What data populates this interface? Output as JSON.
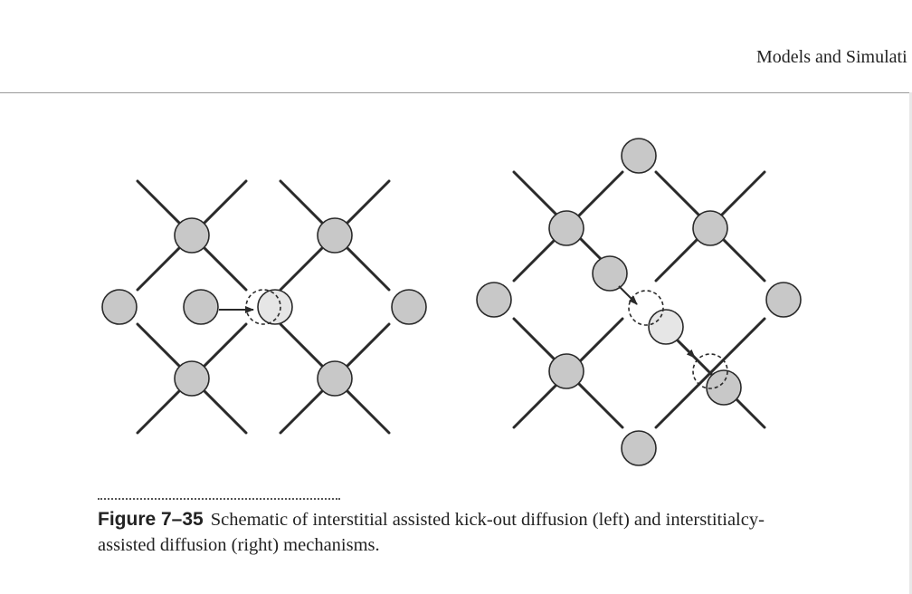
{
  "header": {
    "running_head": "Models and Simulati"
  },
  "figure": {
    "label": "Figure 7–35",
    "caption_line1": "Schematic of interstitial assisted kick-out diffusion (left) and interstitialcy-",
    "caption_line2": "assisted diffusion (right) mechanisms."
  },
  "colors": {
    "lattice_atom": "#c8c8c8",
    "moving_atom": "#e6e6e6",
    "bond": "#2a2a2a"
  }
}
